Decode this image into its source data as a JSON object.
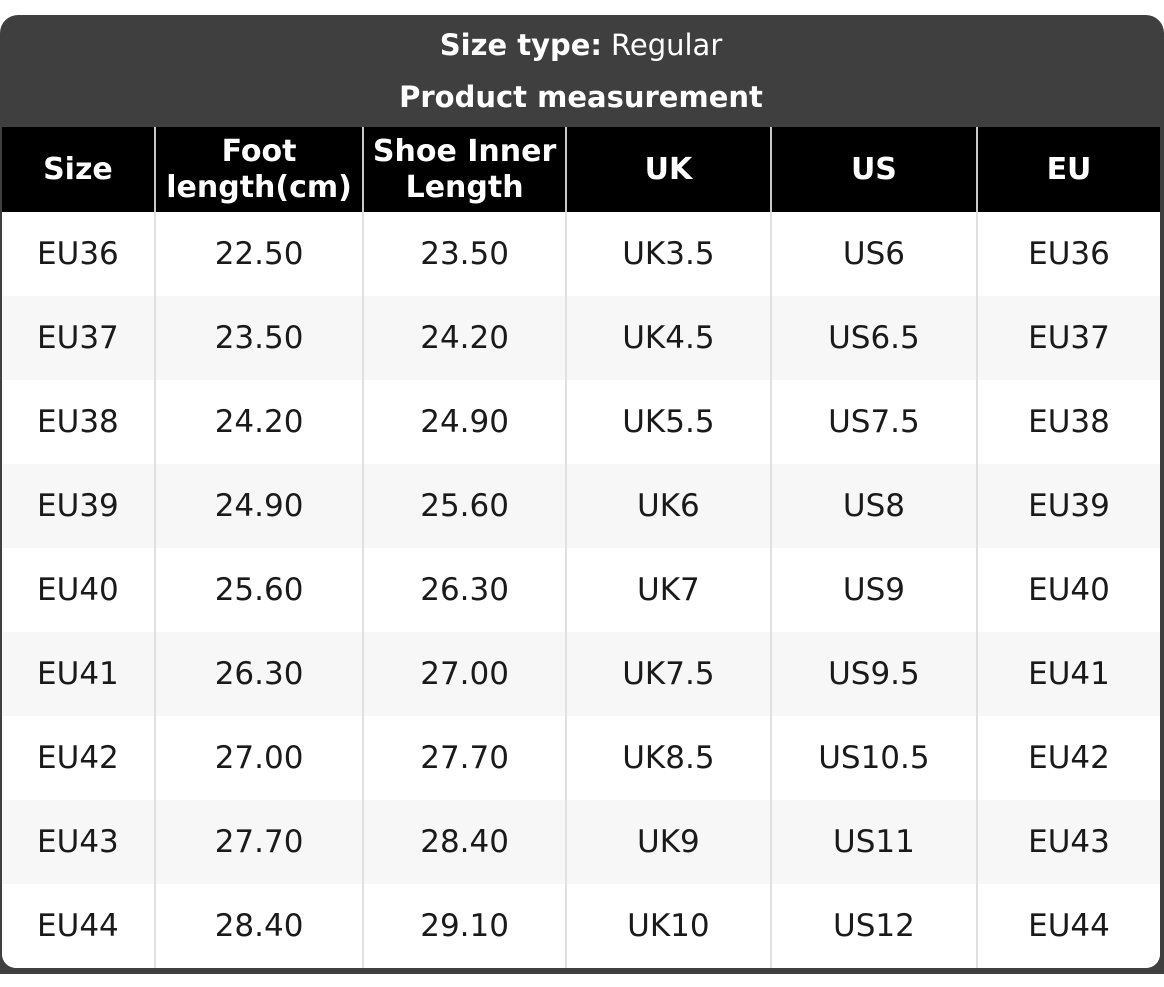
{
  "banner": {
    "size_type_label": "Size type:",
    "size_type_value": "Regular",
    "subtitle": "Product measurement"
  },
  "table": {
    "columns": [
      "Size",
      "Foot length(cm)",
      "Shoe Inner Length",
      "UK",
      "US",
      "EU"
    ],
    "rows": [
      [
        "EU36",
        "22.50",
        "23.50",
        "UK3.5",
        "US6",
        "EU36"
      ],
      [
        "EU37",
        "23.50",
        "24.20",
        "UK4.5",
        "US6.5",
        "EU37"
      ],
      [
        "EU38",
        "24.20",
        "24.90",
        "UK5.5",
        "US7.5",
        "EU38"
      ],
      [
        "EU39",
        "24.90",
        "25.60",
        "UK6",
        "US8",
        "EU39"
      ],
      [
        "EU40",
        "25.60",
        "26.30",
        "UK7",
        "US9",
        "EU40"
      ],
      [
        "EU41",
        "26.30",
        "27.00",
        "UK7.5",
        "US9.5",
        "EU41"
      ],
      [
        "EU42",
        "27.00",
        "27.70",
        "UK8.5",
        "US10.5",
        "EU42"
      ],
      [
        "EU43",
        "27.70",
        "28.40",
        "UK9",
        "US11",
        "EU43"
      ],
      [
        "EU44",
        "28.40",
        "29.10",
        "UK10",
        "US12",
        "EU44"
      ]
    ]
  },
  "colors": {
    "banner_bg": "#3f3f3f",
    "header_bg": "#000000",
    "header_text": "#ffffff",
    "row_bg": "#ffffff",
    "row_alt_bg": "#f7f7f7",
    "body_text": "#1a1a1a",
    "divider": "#e0e0e0",
    "header_divider": "#c9c9c9"
  }
}
